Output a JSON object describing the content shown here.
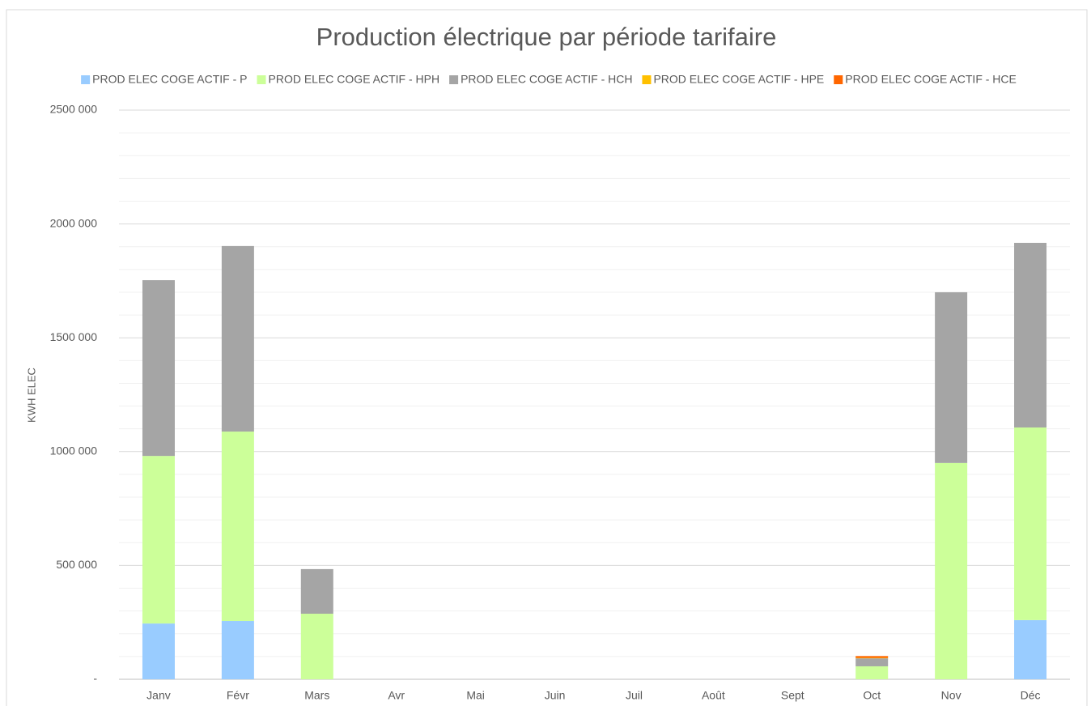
{
  "chart_data": {
    "type": "stacked_bar",
    "title": "Production électrique par période tarifaire",
    "y_label": "KWH ELEC",
    "categories": [
      "Janv",
      "Févr",
      "Mars",
      "Avr",
      "Mai",
      "Juin",
      "Juil",
      "Août",
      "Sept",
      "Oct",
      "Nov",
      "Déc"
    ],
    "series": [
      {
        "name": "PROD ELEC COGE ACTIF - P",
        "color": "#99ccff",
        "values": [
          245000,
          256000,
          0,
          0,
          0,
          0,
          0,
          0,
          0,
          0,
          0,
          260000
        ]
      },
      {
        "name": "PROD ELEC COGE ACTIF - HPH",
        "color": "#ccff99",
        "values": [
          736000,
          832000,
          288000,
          0,
          0,
          0,
          0,
          0,
          0,
          57000,
          950000,
          846000
        ]
      },
      {
        "name": "PROD ELEC COGE ACTIF - HCH",
        "color": "#a5a5a5",
        "values": [
          772000,
          815000,
          196000,
          0,
          0,
          0,
          0,
          0,
          0,
          35000,
          750000,
          811000
        ]
      },
      {
        "name": "PROD ELEC COGE ACTIF - HPE",
        "color": "#ffc000",
        "values": [
          0,
          0,
          0,
          0,
          0,
          0,
          0,
          0,
          0,
          2000,
          0,
          0
        ]
      },
      {
        "name": "PROD ELEC COGE ACTIF - HCE",
        "color": "#ff6600",
        "values": [
          0,
          0,
          0,
          0,
          0,
          0,
          0,
          0,
          0,
          8000,
          0,
          0
        ]
      }
    ],
    "ylim": [
      0,
      2500000
    ],
    "yticks": [
      {
        "value": 0,
        "label": "-"
      },
      {
        "value": 500000,
        "label": "500 000"
      },
      {
        "value": 1000000,
        "label": "1000 000"
      },
      {
        "value": 1500000,
        "label": "1500 000"
      },
      {
        "value": 2000000,
        "label": "2000 000"
      },
      {
        "value": 2500000,
        "label": "2500 000"
      }
    ],
    "grid": true,
    "minor_grid": true,
    "legend": "top"
  }
}
